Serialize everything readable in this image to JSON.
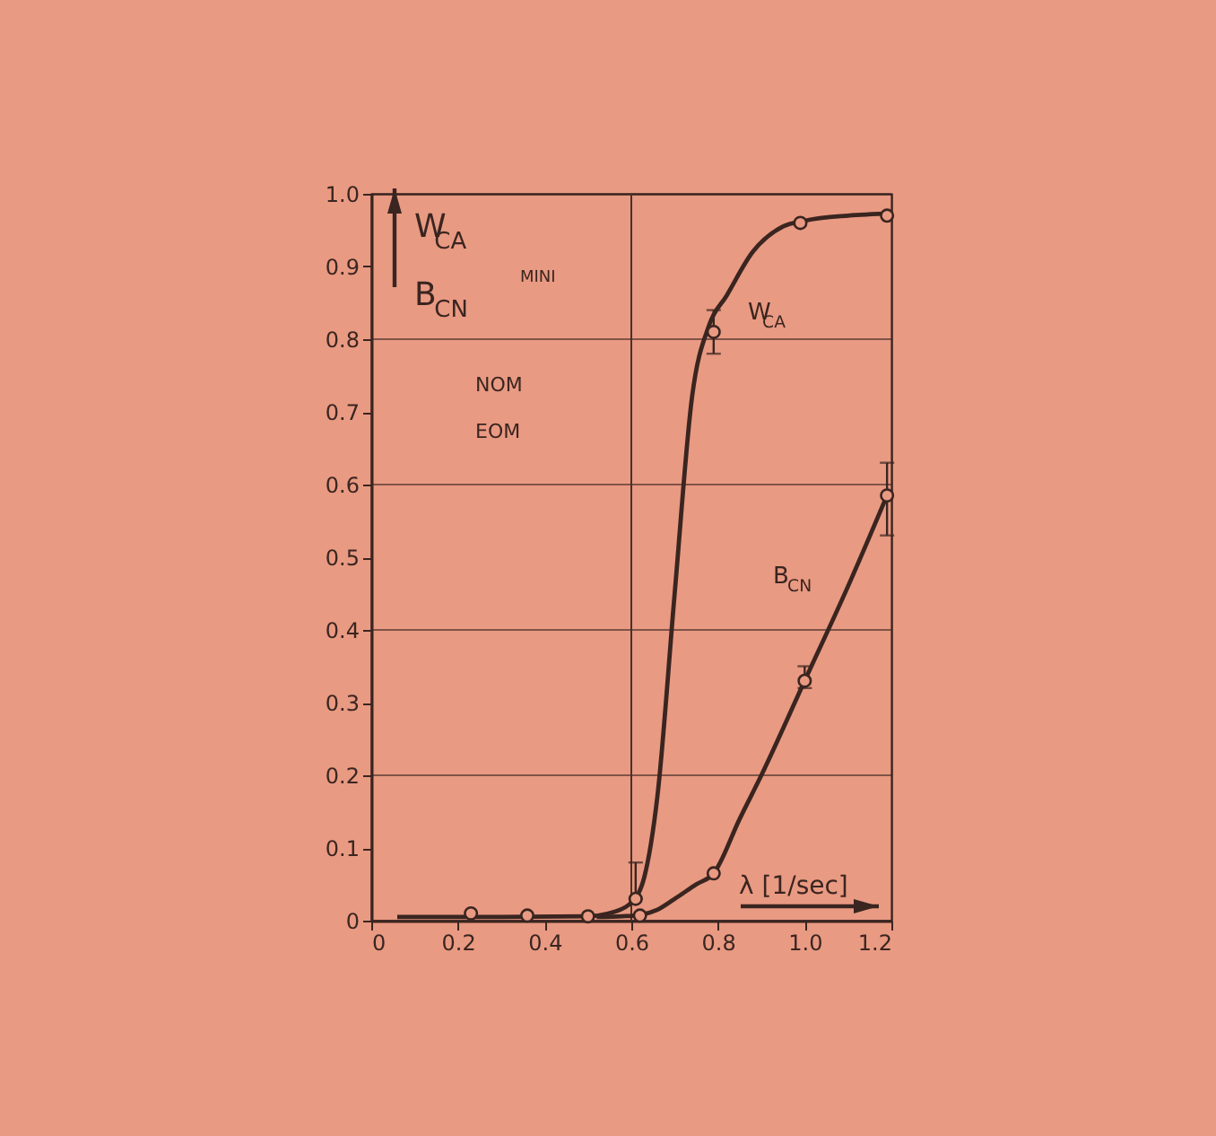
{
  "chart_data": {
    "type": "line",
    "xlabel": "λ [1/sec]",
    "ylabel": "W$_{CA}$ B$_{CN}$",
    "xlim": [
      0,
      1.2
    ],
    "xticks": [
      0,
      0.2,
      0.4,
      0.6,
      0.8,
      {
        "value": 1,
        "label": "1.0"
      },
      1.2
    ],
    "ylim": [
      0,
      1
    ],
    "yticks": [
      0,
      0.1,
      0.2,
      0.3,
      0.4,
      0.5,
      0.6,
      0.7,
      0.8,
      0.9,
      {
        "value": 1,
        "label": "1.0"
      }
    ],
    "grid": "y",
    "ref_lines": [
      {
        "axis": "x",
        "value": 0.6,
        "color": "#4a3028"
      }
    ],
    "annotations": [
      "MINI",
      "NOM",
      "EOM"
    ],
    "series": [
      {
        "name": "W$_{CA}$",
        "type": "line",
        "color": "#3a2520",
        "marker": "none",
        "x": [
          0.06,
          0.3,
          0.5,
          0.56,
          0.6,
          0.63,
          0.66,
          0.7,
          0.74,
          0.78,
          0.82,
          0.88,
          0.95,
          1.0,
          1.1,
          1.2
        ],
        "values": [
          0.005,
          0.005,
          0.006,
          0.012,
          0.025,
          0.06,
          0.17,
          0.45,
          0.72,
          0.82,
          0.86,
          0.92,
          0.955,
          0.963,
          0.97,
          0.973
        ]
      },
      {
        "name": "B$_{CN}$",
        "type": "line",
        "color": "#3a2520",
        "marker": "none",
        "x": [
          0.52,
          0.58,
          0.62,
          0.66,
          0.7,
          0.75,
          0.79,
          0.85,
          0.9,
          1.0,
          1.1,
          1.19
        ],
        "values": [
          0.005,
          0.006,
          0.008,
          0.015,
          0.03,
          0.05,
          0.065,
          0.14,
          0.2,
          0.33,
          0.46,
          0.585
        ]
      },
      {
        "type": "scatter",
        "color": "#3a2520",
        "marker": "circle",
        "x": [
          0.23,
          0.36,
          0.5,
          0.61,
          0.79,
          0.99,
          1.19
        ],
        "values": [
          0.01,
          0.007,
          0.006,
          0.03,
          0.81,
          0.96,
          0.97
        ],
        "errors": [
          null,
          null,
          null,
          [
            0.03,
            0.08
          ],
          [
            0.78,
            0.84
          ],
          null,
          null
        ]
      },
      {
        "type": "scatter",
        "color": "#3a2520",
        "marker": "circle",
        "x": [
          0.62,
          0.79,
          1.0,
          1.19
        ],
        "values": [
          0.007,
          0.065,
          0.33,
          0.585
        ],
        "errors": [
          null,
          null,
          [
            0.32,
            0.35
          ],
          [
            0.53,
            0.63
          ]
        ]
      }
    ]
  }
}
